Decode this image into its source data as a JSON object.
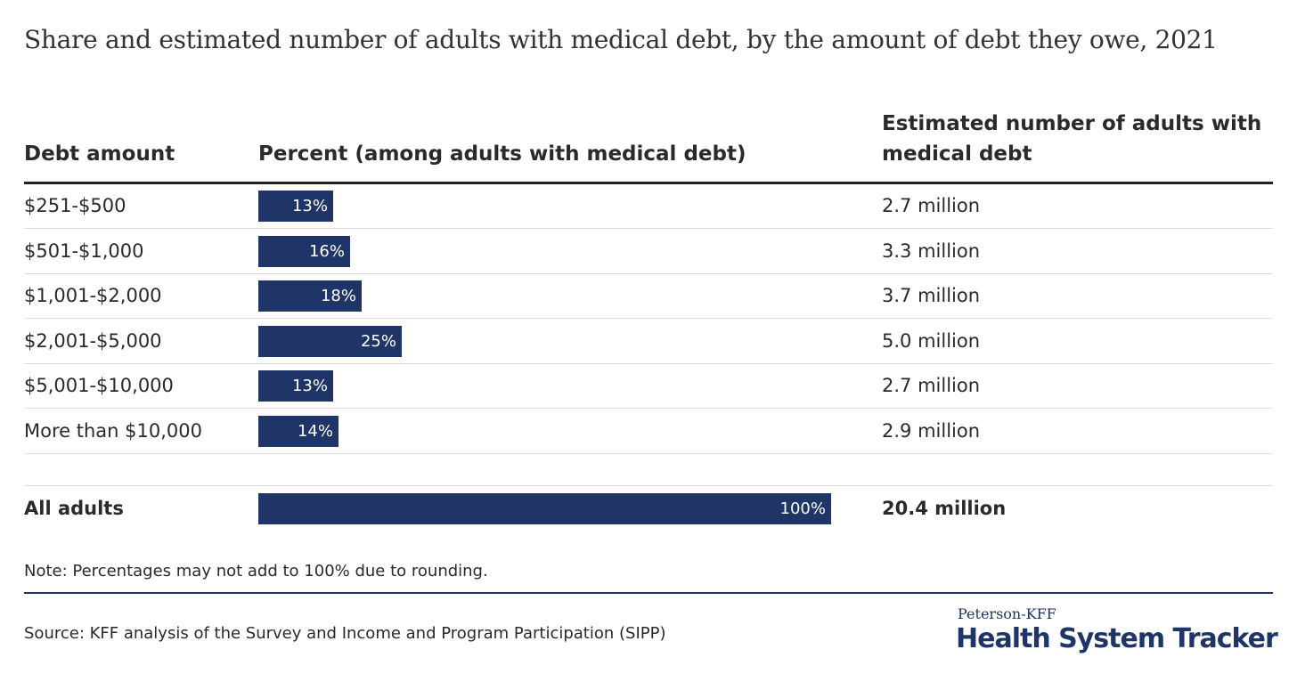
{
  "chart_data": {
    "type": "table",
    "title": "Share and estimated number of adults with medical debt, by the amount of debt they owe, 2021",
    "columns": [
      "Debt amount",
      "Percent (among adults with medical debt)",
      "Estimated number of adults with medical debt"
    ],
    "rows": [
      {
        "label": "$251-$500",
        "percent": 13,
        "percent_label": "13%",
        "number": "2.7 million"
      },
      {
        "label": "$501-$1,000",
        "percent": 16,
        "percent_label": "16%",
        "number": "3.3 million"
      },
      {
        "label": "$1,001-$2,000",
        "percent": 18,
        "percent_label": "18%",
        "number": "3.7 million"
      },
      {
        "label": "$2,001-$5,000",
        "percent": 25,
        "percent_label": "25%",
        "number": "5.0 million"
      },
      {
        "label": "$5,001-$10,000",
        "percent": 13,
        "percent_label": "13%",
        "number": "2.7 million"
      },
      {
        "label": "More than $10,000",
        "percent": 14,
        "percent_label": "14%",
        "number": "2.9 million"
      }
    ],
    "total": {
      "label": "All adults",
      "percent": 100,
      "percent_label": "100%",
      "number": "20.4 million"
    },
    "bar_max": 100,
    "bar_color": "#1f3567"
  },
  "note": "Note: Percentages may not add to 100% due to rounding.",
  "source": "Source: KFF analysis of the Survey and Income and Program Participation (SIPP)",
  "logo": {
    "small": "Peterson-KFF",
    "big": "Health System Tracker"
  }
}
